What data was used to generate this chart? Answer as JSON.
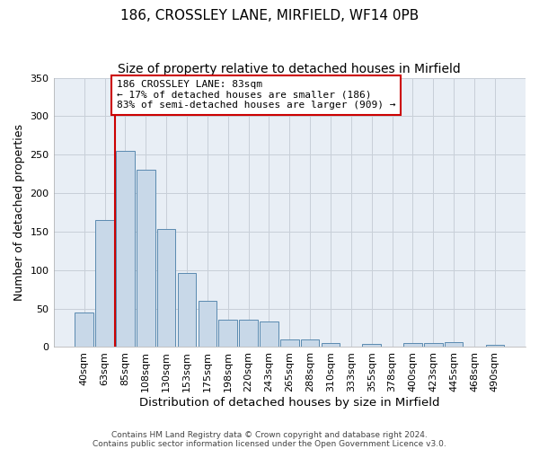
{
  "title1": "186, CROSSLEY LANE, MIRFIELD, WF14 0PB",
  "title2": "Size of property relative to detached houses in Mirfield",
  "xlabel": "Distribution of detached houses by size in Mirfield",
  "ylabel": "Number of detached properties",
  "bar_labels": [
    "40sqm",
    "63sqm",
    "85sqm",
    "108sqm",
    "130sqm",
    "153sqm",
    "175sqm",
    "198sqm",
    "220sqm",
    "243sqm",
    "265sqm",
    "288sqm",
    "310sqm",
    "333sqm",
    "355sqm",
    "378sqm",
    "400sqm",
    "423sqm",
    "445sqm",
    "468sqm",
    "490sqm"
  ],
  "bar_values": [
    45,
    165,
    255,
    230,
    153,
    96,
    60,
    35,
    35,
    33,
    10,
    10,
    5,
    0,
    4,
    0,
    5,
    5,
    6,
    0,
    3
  ],
  "bar_color": "#c8d8e8",
  "bar_edgecolor": "#5a8ab0",
  "vline_color": "#cc0000",
  "annotation_text": "186 CROSSLEY LANE: 83sqm\n← 17% of detached houses are smaller (186)\n83% of semi-detached houses are larger (909) →",
  "annotation_box_edgecolor": "#cc0000",
  "annotation_box_facecolor": "#ffffff",
  "ylim": [
    0,
    350
  ],
  "yticks": [
    0,
    50,
    100,
    150,
    200,
    250,
    300,
    350
  ],
  "footnote1": "Contains HM Land Registry data © Crown copyright and database right 2024.",
  "footnote2": "Contains public sector information licensed under the Open Government Licence v3.0.",
  "fig_facecolor": "#ffffff",
  "plot_bg_color": "#e8eef5",
  "grid_color": "#c8cfd8",
  "title_fontsize": 11,
  "subtitle_fontsize": 10
}
